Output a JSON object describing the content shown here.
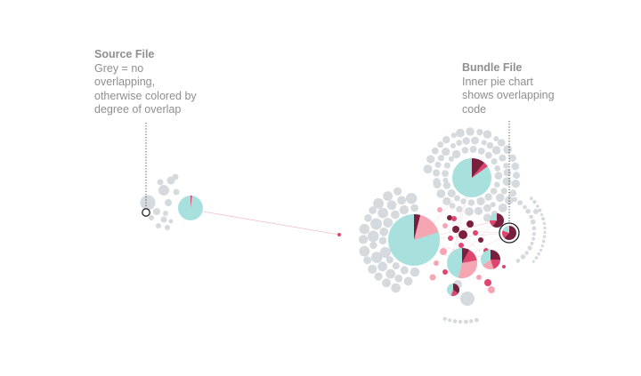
{
  "annotations": {
    "source": {
      "title": "Source File",
      "text": "Grey = no\noverlapping,\notherwise colored by\ndegree of overlap"
    },
    "bundle": {
      "title": "Bundle File",
      "text": "Inner pie chart\nshows overlapping\ncode"
    }
  },
  "colors": {
    "no_overlap": "#d4dadd",
    "file_fill": "#a7e0dc",
    "overlap_light": "#f6a6b2",
    "overlap_mid": "#e0456f",
    "overlap_dark": "#7a1f3d",
    "link": "#f4c0c8",
    "callout_text": "#8f8f8f"
  }
}
